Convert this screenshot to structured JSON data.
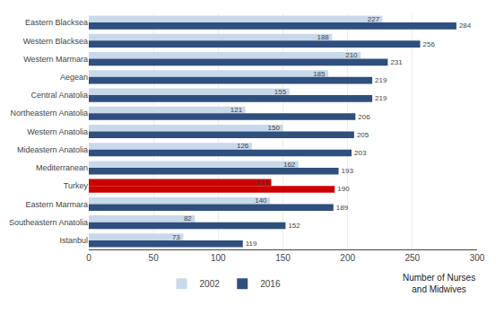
{
  "chart_data": {
    "type": "bar",
    "orientation": "horizontal",
    "categories": [
      "Eastern Blacksea",
      "Western Blacksea",
      "Western Marmara",
      "Aegean",
      "Central Anatolia",
      "Northeastern Anatolia",
      "Western Anatolia",
      "Mideastern Anatolia",
      "Mediterranean",
      "Turkey",
      "Eastern Marmara",
      "Southeastern Anatolia",
      "Istanbul"
    ],
    "series": [
      {
        "name": "2002",
        "values": [
          227,
          188,
          210,
          185,
          155,
          121,
          150,
          126,
          162,
          141,
          140,
          82,
          73
        ],
        "colors": [
          "#c9d9ea",
          "#c9d9ea",
          "#c9d9ea",
          "#c9d9ea",
          "#c9d9ea",
          "#c9d9ea",
          "#c9d9ea",
          "#c9d9ea",
          "#c9d9ea",
          "#cc0000",
          "#c9d9ea",
          "#c9d9ea",
          "#c9d9ea"
        ]
      },
      {
        "name": "2016",
        "values": [
          284,
          256,
          231,
          219,
          219,
          206,
          205,
          203,
          193,
          190,
          189,
          152,
          119
        ],
        "colors": [
          "#2f4f7f",
          "#2f4f7f",
          "#2f4f7f",
          "#2f4f7f",
          "#2f4f7f",
          "#2f4f7f",
          "#2f4f7f",
          "#2f4f7f",
          "#2f4f7f",
          "#cc0000",
          "#2f4f7f",
          "#2f4f7f",
          "#2f4f7f"
        ]
      }
    ],
    "xlabel": "Number of Nurses\nand Midwives",
    "xlim": [
      0,
      300
    ],
    "xticks": [
      0,
      50,
      100,
      150,
      200,
      250,
      300
    ],
    "grid": true,
    "legend": "bottom",
    "data_labels": true
  }
}
